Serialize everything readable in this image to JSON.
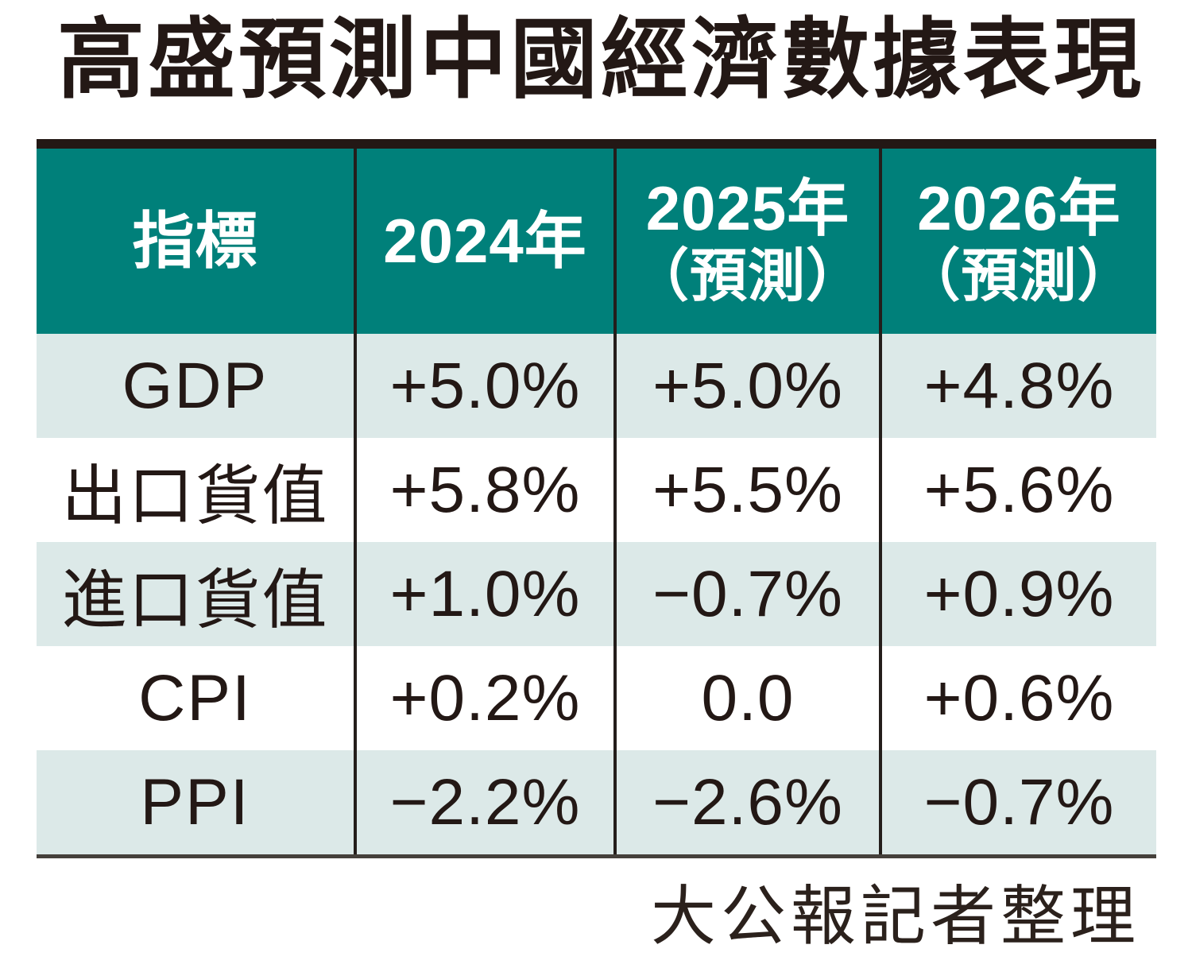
{
  "title": "高盛預測中國經濟數據表現",
  "credit": "大公報記者整理",
  "colors": {
    "header_bg": "#00807a",
    "row_alt_bg": "#dce9e8",
    "row_bg": "#ffffff",
    "top_bar": "#231815",
    "ink": "#231815",
    "header_text": "#ffffff"
  },
  "table": {
    "headers": [
      {
        "line1": "指標",
        "line2": ""
      },
      {
        "line1": "2024年",
        "line2": ""
      },
      {
        "line1": "2025年",
        "line2": "（預測）"
      },
      {
        "line1": "2026年",
        "line2": "（預測）"
      }
    ],
    "rows": [
      {
        "label": "GDP",
        "values": [
          "+5.0%",
          "+5.0%",
          "+4.8%"
        ]
      },
      {
        "label": "出口貨值",
        "values": [
          "+5.8%",
          "+5.5%",
          "+5.6%"
        ]
      },
      {
        "label": "進口貨值",
        "values": [
          "+1.0%",
          "−0.7%",
          "+0.9%"
        ]
      },
      {
        "label": "CPI",
        "values": [
          "+0.2%",
          "0.0",
          "+0.6%"
        ]
      },
      {
        "label": "PPI",
        "values": [
          "−2.2%",
          "−2.6%",
          "−0.7%"
        ]
      }
    ]
  },
  "chart_data": {
    "type": "table",
    "title": "高盛預測中國經濟數據表現",
    "columns": [
      "指標",
      "2024年",
      "2025年（預測）",
      "2026年（預測）"
    ],
    "rows": [
      [
        "GDP",
        "+5.0%",
        "+5.0%",
        "+4.8%"
      ],
      [
        "出口貨值",
        "+5.8%",
        "+5.5%",
        "+5.6%"
      ],
      [
        "進口貨值",
        "+1.0%",
        "−0.7%",
        "+0.9%"
      ],
      [
        "CPI",
        "+0.2%",
        "0.0",
        "+0.6%"
      ],
      [
        "PPI",
        "−2.2%",
        "−2.6%",
        "−0.7%"
      ]
    ],
    "numeric_values_pct": {
      "GDP": [
        5.0,
        5.0,
        4.8
      ],
      "出口貨值": [
        5.8,
        5.5,
        5.6
      ],
      "進口貨值": [
        1.0,
        -0.7,
        0.9
      ],
      "CPI": [
        0.2,
        0.0,
        0.6
      ],
      "PPI": [
        -2.2,
        -2.6,
        -0.7
      ]
    },
    "source": "大公報記者整理"
  }
}
